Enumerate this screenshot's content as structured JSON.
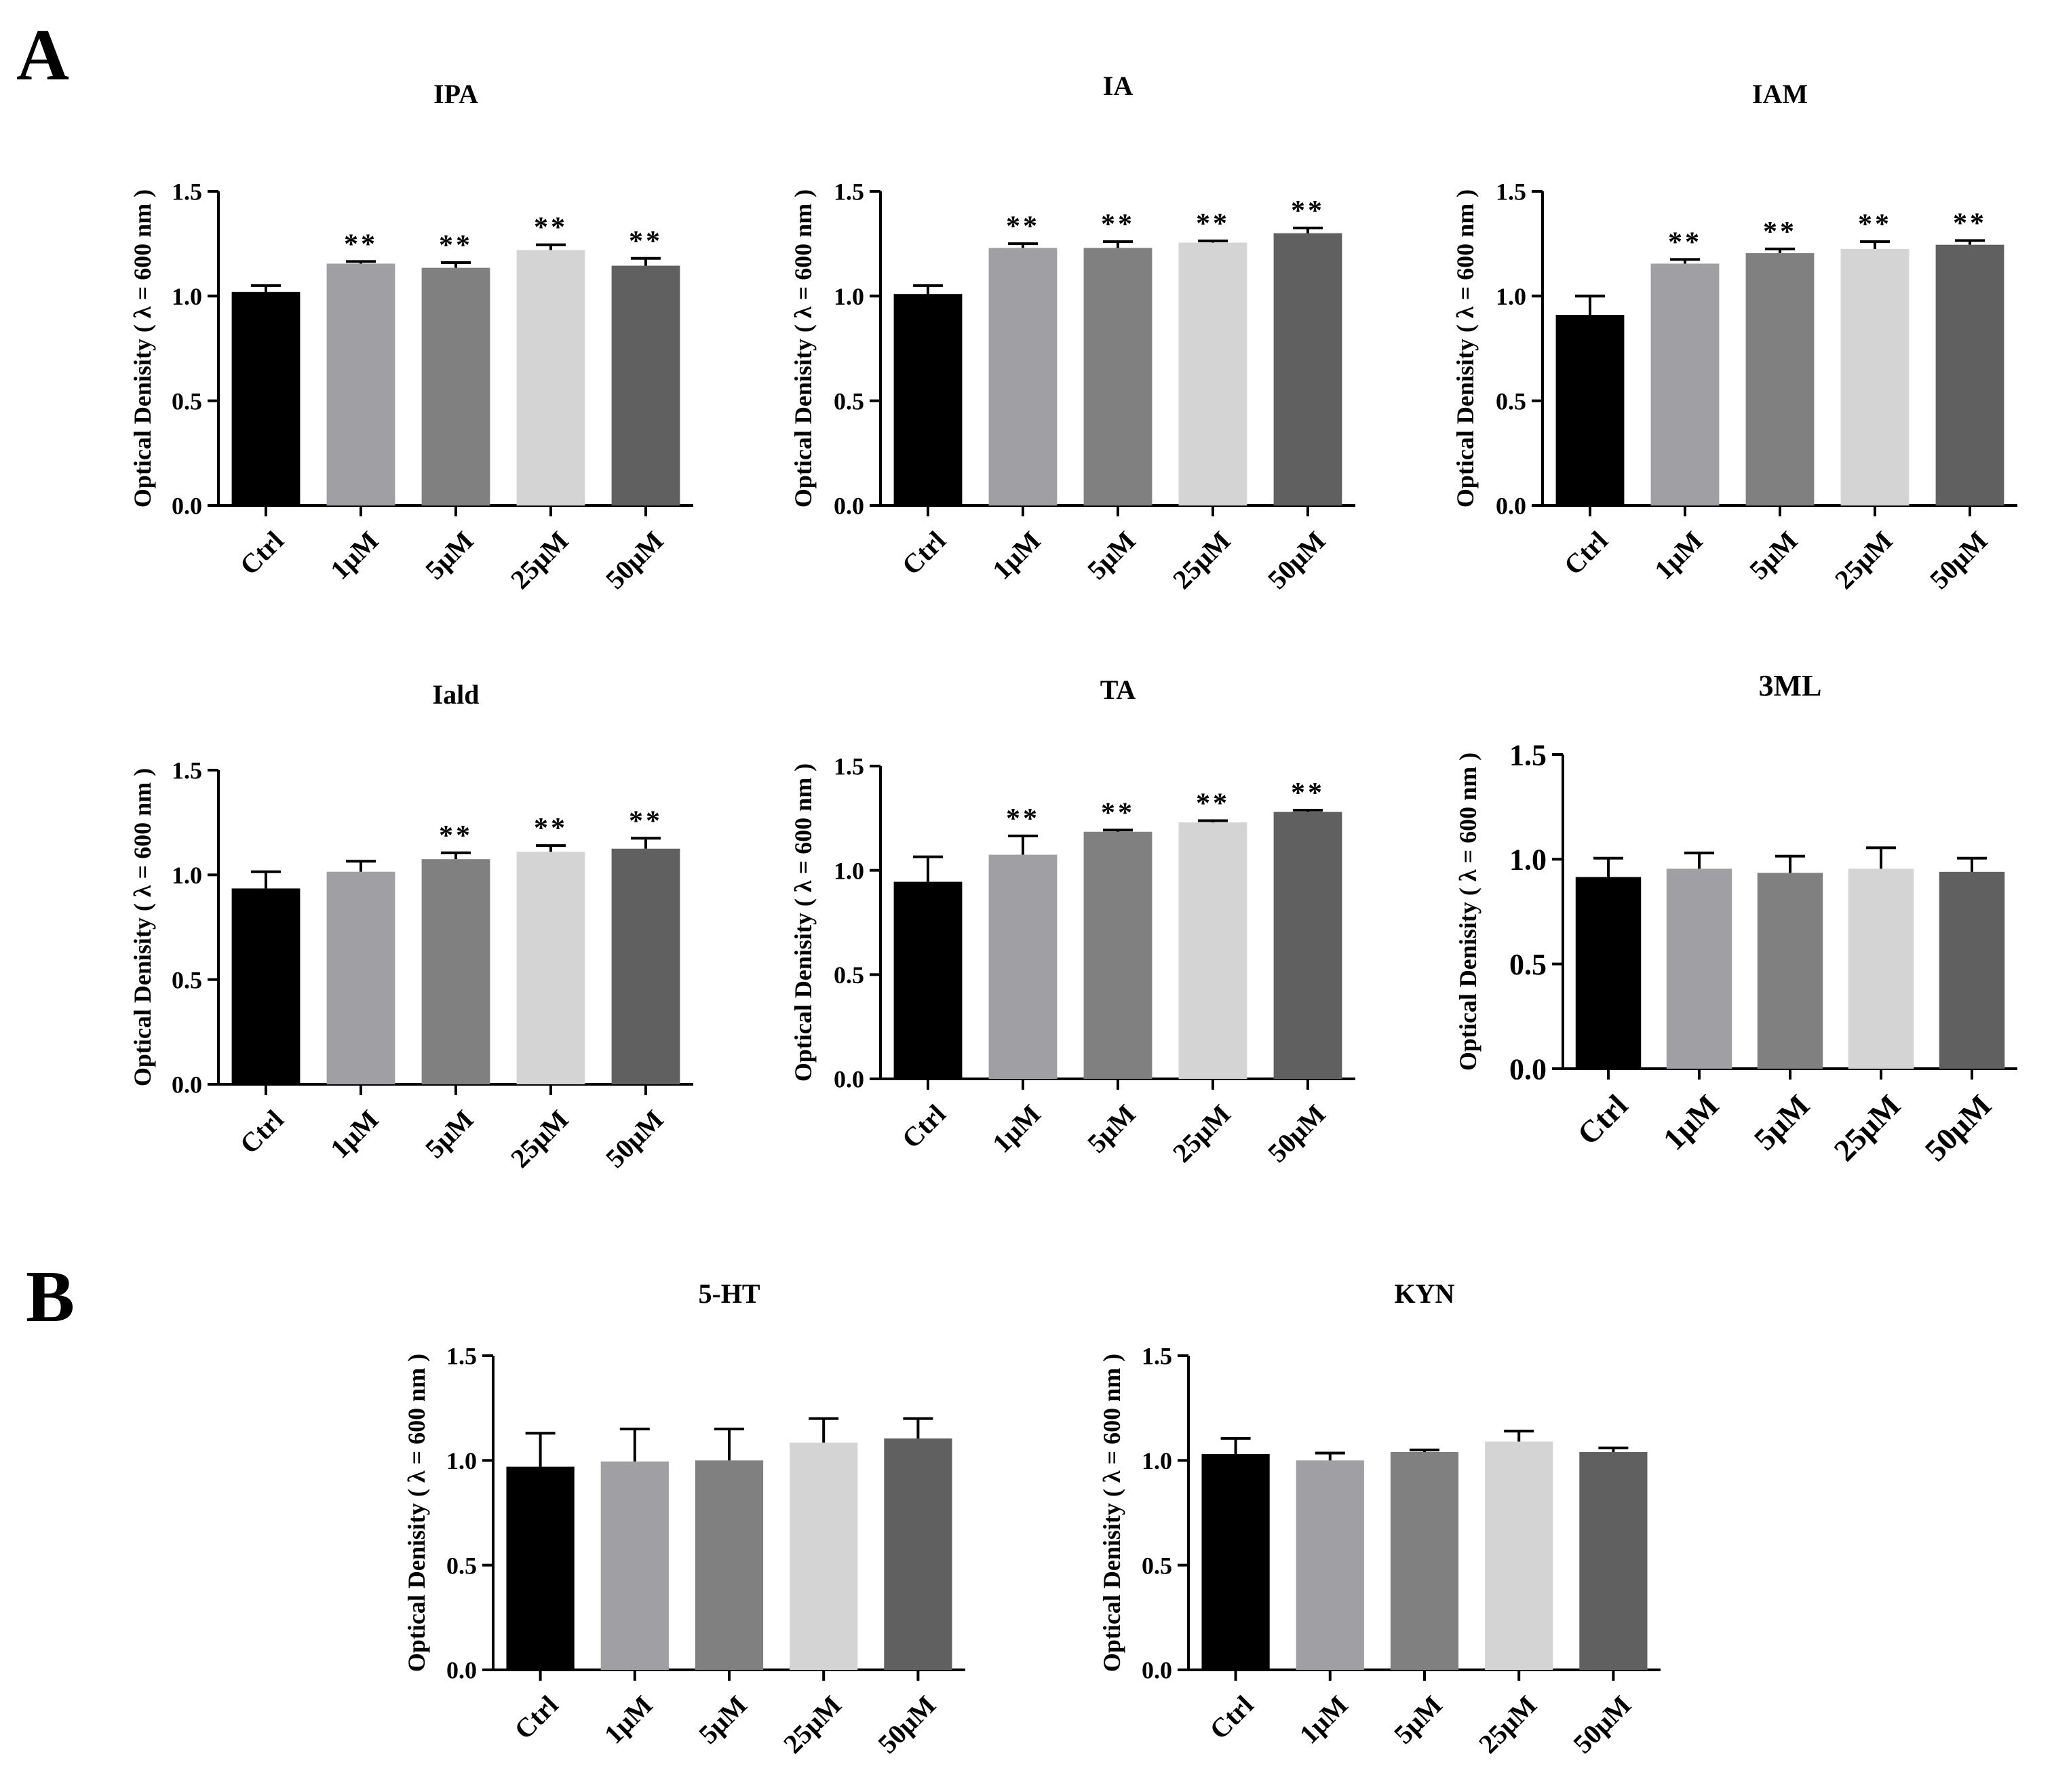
{
  "figure": {
    "panel_labels": [
      "A",
      "B"
    ],
    "bar_colors": [
      "#000000",
      "#a0a0a4",
      "#808080",
      "#d4d4d4",
      "#606060"
    ],
    "axis_color": "#000000"
  },
  "chart_data": [
    {
      "type": "bar",
      "panel": "A",
      "title": "IPA",
      "ylabel": "Optical Denisity ( λ = 600 nm )",
      "categories": [
        "Ctrl",
        "1μM",
        "5μM",
        "25μM",
        "50μM"
      ],
      "values": [
        1.02,
        1.155,
        1.135,
        1.22,
        1.145
      ],
      "errors": [
        0.03,
        0.01,
        0.025,
        0.025,
        0.035
      ],
      "significance": [
        "",
        "**",
        "**",
        "**",
        "**"
      ],
      "ylim": [
        0,
        1.5
      ],
      "yticks": [
        "0.0",
        "0.5",
        "1.0",
        "1.5"
      ]
    },
    {
      "type": "bar",
      "panel": "A",
      "title": "IA",
      "ylabel": "Optical Denisity ( λ = 600 nm )",
      "categories": [
        "Ctrl",
        "1μM",
        "5μM",
        "25μM",
        "50μM"
      ],
      "values": [
        1.01,
        1.23,
        1.23,
        1.255,
        1.3
      ],
      "errors": [
        0.04,
        0.02,
        0.03,
        0.008,
        0.025
      ],
      "significance": [
        "",
        "**",
        "**",
        "**",
        "**"
      ],
      "ylim": [
        0,
        1.5
      ],
      "yticks": [
        "0.0",
        "0.5",
        "1.0",
        "1.5"
      ]
    },
    {
      "type": "bar",
      "panel": "A",
      "title": "IAM",
      "ylabel": "Optical Denisity ( λ = 600 nm )",
      "categories": [
        "Ctrl",
        "1μM",
        "5μM",
        "25μM",
        "50μM"
      ],
      "values": [
        0.91,
        1.155,
        1.205,
        1.225,
        1.245
      ],
      "errors": [
        0.09,
        0.02,
        0.02,
        0.035,
        0.02
      ],
      "significance": [
        "",
        "**",
        "**",
        "**",
        "**"
      ],
      "ylim": [
        0,
        1.5
      ],
      "yticks": [
        "0.0",
        "0.5",
        "1.0",
        "1.5"
      ]
    },
    {
      "type": "bar",
      "panel": "A",
      "title": "Iald",
      "ylabel": "Optical Denisity ( λ = 600 nm )",
      "categories": [
        "Ctrl",
        "1μM",
        "5μM",
        "25μM",
        "50μM"
      ],
      "values": [
        0.935,
        1.015,
        1.075,
        1.11,
        1.125
      ],
      "errors": [
        0.08,
        0.05,
        0.03,
        0.03,
        0.05
      ],
      "significance": [
        "",
        "",
        "**",
        "**",
        "**"
      ],
      "ylim": [
        0,
        1.5
      ],
      "yticks": [
        "0.0",
        "0.5",
        "1.0",
        "1.5"
      ]
    },
    {
      "type": "bar",
      "panel": "A",
      "title": "TA",
      "ylabel": "Optical Denisity ( λ = 600 nm )",
      "categories": [
        "Ctrl",
        "1μM",
        "5μM",
        "25μM",
        "50μM"
      ],
      "values": [
        0.945,
        1.075,
        1.185,
        1.23,
        1.28
      ],
      "errors": [
        0.12,
        0.09,
        0.008,
        0.008,
        0.008
      ],
      "significance": [
        "",
        "**",
        "**",
        "**",
        "**"
      ],
      "ylim": [
        0,
        1.5
      ],
      "yticks": [
        "0.0",
        "0.5",
        "1.0",
        "1.5"
      ]
    },
    {
      "type": "bar",
      "panel": "A",
      "title": "3ML",
      "ylabel": "Optical Denisity ( λ = 600 nm )",
      "categories": [
        "Ctrl",
        "1μM",
        "5μM",
        "25μM",
        "50μM"
      ],
      "values": [
        0.915,
        0.955,
        0.935,
        0.955,
        0.94
      ],
      "errors": [
        0.09,
        0.075,
        0.08,
        0.1,
        0.065
      ],
      "significance": [
        "",
        "",
        "",
        "",
        ""
      ],
      "ylim": [
        0,
        1.5
      ],
      "yticks": [
        "0.0",
        "0.5",
        "1.0",
        "1.5"
      ]
    },
    {
      "type": "bar",
      "panel": "B",
      "title": "5-HT",
      "ylabel": "Optical Denisity ( λ = 600 nm )",
      "categories": [
        "Ctrl",
        "1μM",
        "5μM",
        "25μM",
        "50μM"
      ],
      "values": [
        0.97,
        0.995,
        1.0,
        1.085,
        1.105
      ],
      "errors": [
        0.16,
        0.155,
        0.15,
        0.115,
        0.095
      ],
      "significance": [
        "",
        "",
        "",
        "",
        ""
      ],
      "ylim": [
        0,
        1.5
      ],
      "yticks": [
        "0.0",
        "0.5",
        "1.0",
        "1.5"
      ]
    },
    {
      "type": "bar",
      "panel": "B",
      "title": "KYN",
      "ylabel": "Optical Denisity ( λ = 600 nm )",
      "categories": [
        "Ctrl",
        "1μM",
        "5μM",
        "25μM",
        "50μM"
      ],
      "values": [
        1.03,
        1.0,
        1.04,
        1.09,
        1.04
      ],
      "errors": [
        0.075,
        0.035,
        0.01,
        0.05,
        0.02
      ],
      "significance": [
        "",
        "",
        "",
        "",
        ""
      ],
      "ylim": [
        0,
        1.5
      ],
      "yticks": [
        "0.0",
        "0.5",
        "1.0",
        "1.5"
      ]
    }
  ]
}
